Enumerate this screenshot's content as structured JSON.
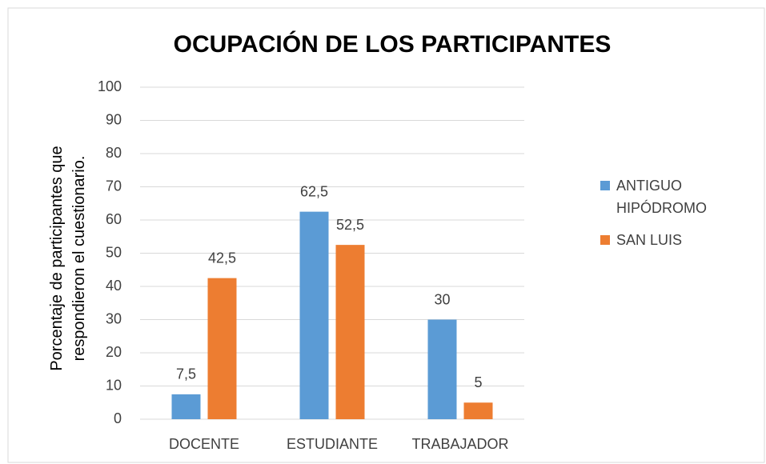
{
  "chart_data": {
    "type": "bar",
    "title": "OCUPACIÓN DE LOS PARTICIPANTES",
    "y_label": "Porcentaje de participantes que respondieron el cuestionario.",
    "categories": [
      "DOCENTE",
      "ESTUDIANTE",
      "TRABAJADOR"
    ],
    "series": [
      {
        "name": "ANTIGUO HIPÓDROMO",
        "color": "#5b9bd5",
        "values": [
          7.5,
          62.5,
          30
        ],
        "value_labels": [
          "7,5",
          "62,5",
          "30"
        ]
      },
      {
        "name": "SAN LUIS",
        "color": "#ed7d31",
        "values": [
          42.5,
          52.5,
          5
        ],
        "value_labels": [
          "42,5",
          "52,5",
          "5"
        ]
      }
    ],
    "ylim": [
      0,
      100
    ],
    "yticks": [
      0,
      10,
      20,
      30,
      40,
      50,
      60,
      70,
      80,
      90,
      100
    ],
    "grid": true,
    "legend": "right"
  }
}
